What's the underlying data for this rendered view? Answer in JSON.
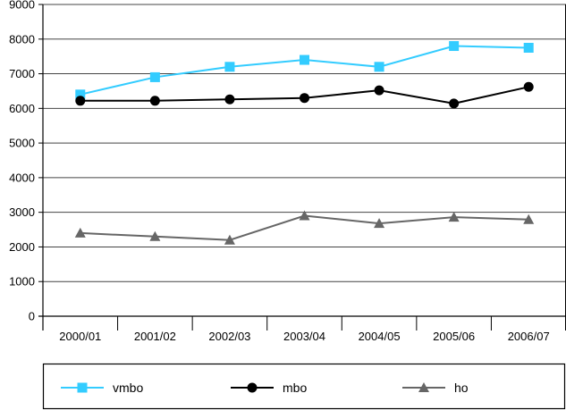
{
  "chart_data": {
    "type": "line",
    "title": "",
    "xlabel": "",
    "ylabel": "",
    "categories": [
      "2000/01",
      "2001/02",
      "2002/03",
      "2003/04",
      "2004/05",
      "2005/06",
      "2006/07"
    ],
    "ylim": [
      0,
      9000
    ],
    "yticks": [
      0,
      1000,
      2000,
      3000,
      4000,
      5000,
      6000,
      7000,
      8000,
      9000
    ],
    "grid": "horizontal",
    "legend_position": "bottom",
    "series": [
      {
        "name": "vmbo",
        "color": "#33ccff",
        "marker": "square",
        "values": [
          6400,
          6900,
          7200,
          7400,
          7200,
          7800,
          7750
        ]
      },
      {
        "name": "mbo",
        "color": "#000000",
        "marker": "circle",
        "values": [
          6220,
          6220,
          6260,
          6300,
          6520,
          6140,
          6620
        ]
      },
      {
        "name": "ho",
        "color": "#666666",
        "marker": "triangle",
        "values": [
          2400,
          2300,
          2200,
          2900,
          2680,
          2860,
          2790
        ]
      }
    ]
  }
}
